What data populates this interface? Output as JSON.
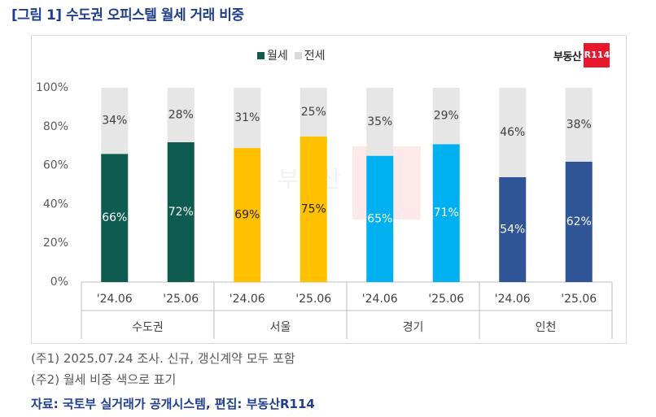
{
  "title": "[그림 1] 수도권 오피스텔 월세 거래 비중",
  "legend": [
    {
      "label": "월세",
      "color": "#0d5c4f"
    },
    {
      "label": "전세",
      "color": "#d9d9d9"
    }
  ],
  "logo": {
    "text": "부동산",
    "badge": "R114"
  },
  "notes": [
    "(주1) 2025.07.24 조사. 신규, 갱신계약 모두 포함",
    "(주2) 월세 비중 색으로 표기"
  ],
  "source": "자료: 국토부 실거래가 공개시스템, 편집: 부동산R114",
  "chart_data": {
    "type": "bar",
    "stacked": true,
    "ylim": [
      0,
      100
    ],
    "yticks": [
      "0%",
      "20%",
      "40%",
      "60%",
      "80%",
      "100%"
    ],
    "groups": [
      "수도권",
      "서울",
      "경기",
      "인천"
    ],
    "categories": [
      "'24.06",
      "'25.06",
      "'24.06",
      "'25.06",
      "'24.06",
      "'25.06",
      "'24.06",
      "'25.06"
    ],
    "series": [
      {
        "name": "월세",
        "values": [
          66,
          72,
          69,
          75,
          65,
          71,
          54,
          62
        ],
        "labels": [
          "66%",
          "72%",
          "69%",
          "75%",
          "65%",
          "71%",
          "54%",
          "62%"
        ],
        "colors": [
          "#0d5c4f",
          "#0d5c4f",
          "#ffc000",
          "#ffc000",
          "#00b0f0",
          "#00b0f0",
          "#2f5597",
          "#2f5597"
        ]
      },
      {
        "name": "전세",
        "values": [
          34,
          28,
          31,
          25,
          35,
          29,
          46,
          38
        ],
        "labels": [
          "34%",
          "28%",
          "31%",
          "25%",
          "35%",
          "29%",
          "46%",
          "38%"
        ],
        "color": "#e6e6e6"
      }
    ],
    "grid": false,
    "legend_position": "top"
  }
}
